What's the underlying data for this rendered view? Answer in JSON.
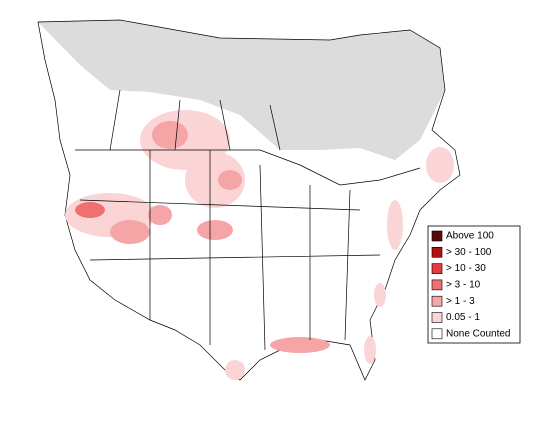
{
  "legend": {
    "items": [
      {
        "label": "Above 100",
        "color": "#5a0a0a"
      },
      {
        "label": "> 30 - 100",
        "color": "#b01010"
      },
      {
        "label": "> 10 - 30",
        "color": "#e83a3a"
      },
      {
        "label": "> 3 - 10",
        "color": "#f07070"
      },
      {
        "label": "> 1 - 3",
        "color": "#f5a5a5"
      },
      {
        "label": "0.05 - 1",
        "color": "#fbd5d5"
      },
      {
        "label": "None Counted",
        "color": "#ffffff"
      }
    ]
  }
}
